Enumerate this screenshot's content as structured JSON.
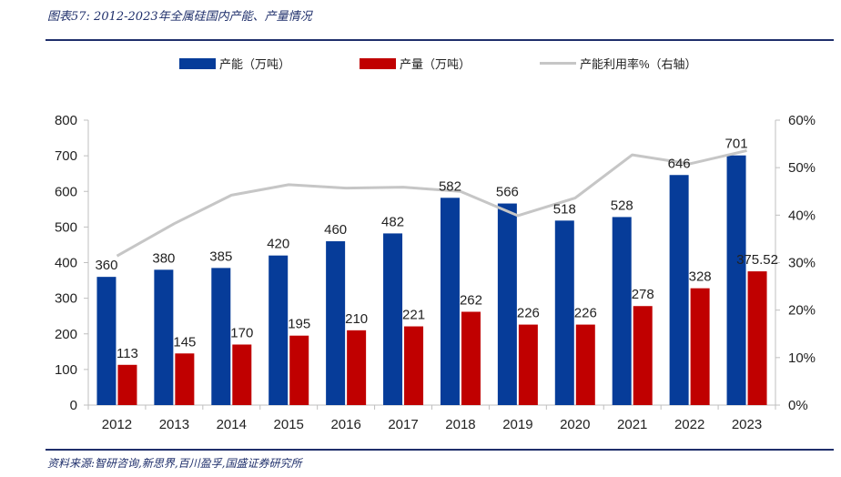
{
  "header": {
    "title": "图表57:  2012-2023年全属硅国内产能、产量情况"
  },
  "footer": {
    "source": "资料来源:智研咨询,新思界,百川盈孚,国盛证券研究所"
  },
  "colors": {
    "capacity": "#063c99",
    "production": "#c00000",
    "utilization": "#c6c6c6",
    "rule": "#1f2f6b"
  },
  "chart_data": {
    "type": "bar",
    "categories": [
      "2012",
      "2013",
      "2014",
      "2015",
      "2016",
      "2017",
      "2018",
      "2019",
      "2020",
      "2021",
      "2022",
      "2023"
    ],
    "series": [
      {
        "name": "产能（万吨）",
        "type": "bar",
        "axis": "left",
        "values": [
          360,
          380,
          385,
          420,
          460,
          482,
          582,
          566,
          518,
          528,
          646,
          701
        ],
        "labels": [
          "360",
          "380",
          "385",
          "420",
          "460",
          "482",
          "582",
          "566",
          "518",
          "528",
          "646",
          "701"
        ]
      },
      {
        "name": "产量（万吨）",
        "type": "bar",
        "axis": "left",
        "values": [
          113,
          145,
          170,
          195,
          210,
          221,
          262,
          226,
          226,
          278,
          328,
          375.52
        ],
        "labels": [
          "113",
          "145",
          "170",
          "195",
          "210",
          "221",
          "262",
          "226",
          "226",
          "278",
          "328",
          "375.52"
        ]
      },
      {
        "name": "产能利用率%（右轴）",
        "type": "line",
        "axis": "right",
        "values": [
          31.4,
          38.2,
          44.2,
          46.4,
          45.7,
          45.9,
          45.0,
          39.9,
          43.6,
          52.7,
          50.8,
          53.6
        ]
      }
    ],
    "y_left": {
      "min": 0,
      "max": 800,
      "ticks": [
        "0",
        "100",
        "200",
        "300",
        "400",
        "500",
        "600",
        "700",
        "800"
      ]
    },
    "y_right": {
      "min": 0,
      "max": 60,
      "ticks": [
        "0%",
        "10%",
        "20%",
        "30%",
        "40%",
        "50%",
        "60%"
      ]
    },
    "legend_position": "top",
    "grid": false
  }
}
